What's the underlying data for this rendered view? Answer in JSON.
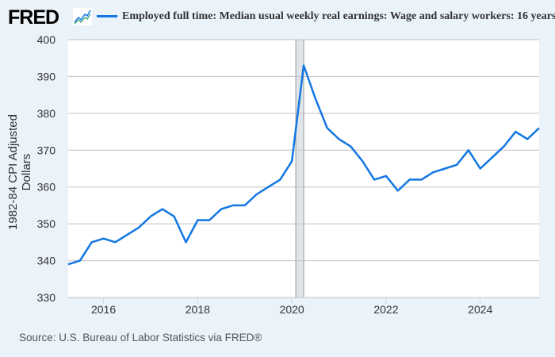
{
  "logo": "FRED",
  "source": "Source: U.S. Bureau of Labor Statistics via FRED®",
  "chart_data": {
    "type": "line",
    "title": "",
    "legend": [
      "Employed full time: Median usual weekly real earnings: Wage and salary workers: 16 years"
    ],
    "legend_placement": "top",
    "ylabel": "1982-84 CPI Adjusted Dollars",
    "xlabel": "",
    "ylim": [
      330,
      400
    ],
    "xlim": [
      2015.25,
      2025.25
    ],
    "yticks": [
      330,
      340,
      350,
      360,
      370,
      380,
      390,
      400
    ],
    "xticks": [
      "2016",
      "2018",
      "2020",
      "2022",
      "2024"
    ],
    "grid": true,
    "recession_shading": [
      [
        2020.083,
        2020.25
      ]
    ],
    "color": "#1277e1",
    "series": [
      {
        "name": "Employed full time: Median usual weekly real earnings: Wage and salary workers: 16 years",
        "x": [
          "2015-04",
          "2015-07",
          "2015-10",
          "2016-01",
          "2016-04",
          "2016-07",
          "2016-10",
          "2017-01",
          "2017-04",
          "2017-07",
          "2017-10",
          "2018-01",
          "2018-04",
          "2018-07",
          "2018-10",
          "2019-01",
          "2019-04",
          "2019-07",
          "2019-10",
          "2020-01",
          "2020-04",
          "2020-07",
          "2020-10",
          "2021-01",
          "2021-04",
          "2021-07",
          "2021-10",
          "2022-01",
          "2022-04",
          "2022-07",
          "2022-10",
          "2023-01",
          "2023-04",
          "2023-07",
          "2023-10",
          "2024-01",
          "2024-04",
          "2024-07",
          "2024-10",
          "2025-01",
          "2025-04"
        ],
        "values": [
          339,
          340,
          345,
          346,
          345,
          347,
          349,
          352,
          354,
          352,
          345,
          351,
          351,
          354,
          355,
          355,
          358,
          360,
          362,
          367,
          393,
          384,
          376,
          373,
          371,
          367,
          362,
          363,
          359,
          362,
          362,
          364,
          365,
          366,
          370,
          365,
          368,
          371,
          375,
          373,
          376
        ]
      }
    ]
  }
}
